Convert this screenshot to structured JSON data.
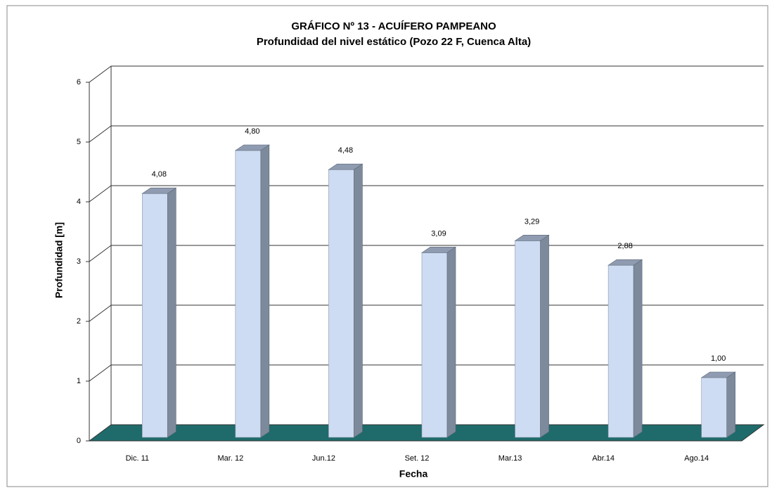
{
  "chart_data": {
    "type": "bar3d",
    "title": "GRÁFICO Nº 13 - ACUÍFERO PAMPEANO",
    "subtitle": "Profundidad del nivel estático (Pozo 22 F, Cuenca Alta)",
    "x_label": "Fecha",
    "y_label": "Profundidad [m]",
    "categories": [
      "Dic. 11",
      "Mar. 12",
      "Jun.12",
      "Set. 12",
      "Mar.13",
      "Abr.14",
      "Ago.14"
    ],
    "values": [
      4.08,
      4.8,
      4.48,
      3.09,
      3.29,
      2.88,
      1.0
    ],
    "value_labels": [
      "4,08",
      "4,80",
      "4,48",
      "3,09",
      "3,29",
      "2,88",
      "1,00"
    ],
    "color": "#cddcf2",
    "floor_color": "#1f6b6b",
    "ylim": [
      0,
      6
    ],
    "yticks": [
      0,
      1,
      2,
      3,
      4,
      5,
      6
    ],
    "grid": true
  }
}
